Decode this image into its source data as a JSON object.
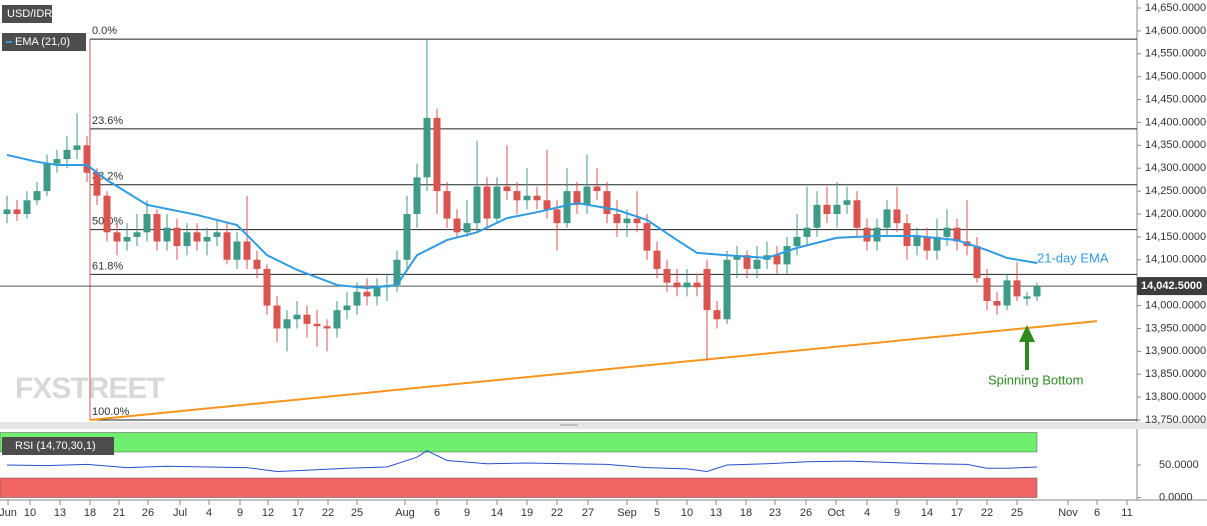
{
  "chart_data": [
    {
      "type": "candlestick",
      "symbol": "USD/IDR",
      "watermark": "FXSTREET",
      "up_color": "#3d9a87",
      "down_color": "#d9534f",
      "xlim": [
        -0.7,
        113
      ],
      "ylim": [
        13750,
        14650
      ],
      "yticks": [
        {
          "value": 13750,
          "label": "13,750.0000"
        },
        {
          "value": 13800,
          "label": "13,800.0000"
        },
        {
          "value": 13850,
          "label": "13,850.0000"
        },
        {
          "value": 13900,
          "label": "13,900.0000"
        },
        {
          "value": 13950,
          "label": "13,950.0000"
        },
        {
          "value": 14000,
          "label": "14,000.0000"
        },
        {
          "value": 14050,
          "label": "14,050.0000"
        },
        {
          "value": 14100,
          "label": "14,100.0000"
        },
        {
          "value": 14150,
          "label": "14,150.0000"
        },
        {
          "value": 14200,
          "label": "14,200.0000"
        },
        {
          "value": 14250,
          "label": "14,250.0000"
        },
        {
          "value": 14300,
          "label": "14,300.0000"
        },
        {
          "value": 14350,
          "label": "14,350.0000"
        },
        {
          "value": 14400,
          "label": "14,400.0000"
        },
        {
          "value": 14450,
          "label": "14,450.0000"
        },
        {
          "value": 14500,
          "label": "14,500.0000"
        },
        {
          "value": 14550,
          "label": "14,550.0000"
        },
        {
          "value": 14600,
          "label": "14,600.0000"
        },
        {
          "value": 14650,
          "label": "14,650.0000"
        }
      ],
      "x": [
        0,
        1,
        2,
        3,
        4,
        5,
        6,
        7,
        8,
        9,
        10,
        11,
        12,
        13,
        14,
        15,
        16,
        17,
        18,
        19,
        20,
        21,
        22,
        23,
        24,
        25,
        26,
        27,
        28,
        29,
        30,
        31,
        32,
        33,
        34,
        35,
        36,
        37,
        38,
        39,
        40,
        41,
        42,
        43,
        44,
        45,
        46,
        47,
        48,
        49,
        50,
        51,
        52,
        53,
        54,
        55,
        56,
        57,
        58,
        59,
        60,
        61,
        62,
        63,
        64,
        65,
        66,
        67,
        68,
        69,
        70,
        71,
        72,
        73,
        74,
        75,
        76,
        77,
        78,
        79,
        80,
        81,
        82,
        83,
        84,
        85,
        86,
        87,
        88,
        89,
        90,
        91,
        92,
        93,
        94,
        95,
        96,
        97,
        98,
        99,
        100,
        101,
        102,
        103
      ],
      "open": [
        14200,
        14210,
        14200,
        14230,
        14250,
        14310,
        14320,
        14340,
        14350,
        14290,
        14240,
        14160,
        14140,
        14150,
        14160,
        14200,
        14140,
        14170,
        14130,
        14160,
        14140,
        14150,
        14160,
        14100,
        14140,
        14100,
        14080,
        14000,
        13950,
        13970,
        13980,
        13960,
        13955,
        13950,
        13990,
        14000,
        14030,
        14020,
        14040,
        14045,
        14100,
        14200,
        14280,
        14410,
        14250,
        14190,
        14160,
        14180,
        14260,
        14190,
        14260,
        14250,
        14230,
        14240,
        14230,
        14210,
        14180,
        14250,
        14220,
        14260,
        14250,
        14200,
        14180,
        14190,
        14180,
        14120,
        14080,
        14050,
        14040,
        14050,
        14080,
        13990,
        13970,
        14100,
        14110,
        14080,
        14100,
        14110,
        14090,
        14130,
        14150,
        14170,
        14220,
        14200,
        14220,
        14230,
        14170,
        14140,
        14170,
        14210,
        14180,
        14130,
        14150,
        14120,
        14150,
        14170,
        14140,
        14130,
        14060,
        14010,
        14000,
        14055,
        14015,
        14020
      ],
      "high": [
        14240,
        14230,
        14250,
        14270,
        14330,
        14340,
        14370,
        14420,
        14370,
        14300,
        14250,
        14180,
        14180,
        14200,
        14230,
        14210,
        14200,
        14190,
        14180,
        14180,
        14170,
        14190,
        14180,
        14160,
        14240,
        14120,
        14090,
        14020,
        13990,
        14010,
        14000,
        13990,
        13970,
        14010,
        14030,
        14050,
        14060,
        14060,
        14070,
        14120,
        14240,
        14310,
        14580,
        14430,
        14270,
        14210,
        14230,
        14360,
        14280,
        14280,
        14350,
        14270,
        14300,
        14260,
        14340,
        14230,
        14300,
        14270,
        14330,
        14300,
        14270,
        14230,
        14210,
        14250,
        14200,
        14140,
        14100,
        14080,
        14080,
        14070,
        14100,
        14010,
        14120,
        14130,
        14120,
        14130,
        14140,
        14130,
        14150,
        14200,
        14260,
        14250,
        14260,
        14270,
        14260,
        14250,
        14190,
        14190,
        14230,
        14260,
        14200,
        14170,
        14170,
        14190,
        14210,
        14190,
        14230,
        14150,
        14080,
        14030,
        14070,
        14095,
        14030,
        14050
      ],
      "low": [
        14180,
        14185,
        14190,
        14220,
        14240,
        14290,
        14300,
        14320,
        14270,
        14220,
        14140,
        14110,
        14120,
        14130,
        14140,
        14120,
        14120,
        14100,
        14110,
        14120,
        14110,
        14130,
        14090,
        14080,
        14080,
        14060,
        13980,
        13920,
        13900,
        13950,
        13930,
        13910,
        13900,
        13930,
        13970,
        13980,
        14000,
        14000,
        14010,
        14030,
        14080,
        14170,
        14250,
        14200,
        14170,
        14150,
        14150,
        14160,
        14170,
        14180,
        14230,
        14200,
        14210,
        14210,
        14190,
        14120,
        14170,
        14200,
        14200,
        14230,
        14180,
        14150,
        14150,
        14160,
        14100,
        14060,
        14030,
        14020,
        14020,
        14020,
        13880,
        13950,
        13960,
        14060,
        14060,
        14060,
        14080,
        14070,
        14070,
        14110,
        14130,
        14150,
        14180,
        14170,
        14200,
        14150,
        14120,
        14120,
        14150,
        14160,
        14100,
        14110,
        14100,
        14100,
        14130,
        14120,
        14110,
        14050,
        13990,
        13980,
        13990,
        14010,
        14000,
        14010
      ],
      "close": [
        14210,
        14200,
        14230,
        14250,
        14310,
        14320,
        14340,
        14350,
        14290,
        14240,
        14160,
        14140,
        14150,
        14160,
        14200,
        14140,
        14170,
        14130,
        14160,
        14140,
        14150,
        14160,
        14100,
        14140,
        14100,
        14080,
        14000,
        13950,
        13970,
        13980,
        13960,
        13955,
        13950,
        13990,
        14000,
        14030,
        14020,
        14040,
        14045,
        14100,
        14200,
        14280,
        14410,
        14250,
        14190,
        14160,
        14180,
        14260,
        14190,
        14260,
        14250,
        14230,
        14240,
        14230,
        14210,
        14180,
        14250,
        14220,
        14260,
        14250,
        14200,
        14180,
        14190,
        14180,
        14120,
        14080,
        14050,
        14040,
        14050,
        14040,
        13990,
        13970,
        14100,
        14110,
        14080,
        14100,
        14110,
        14090,
        14130,
        14150,
        14170,
        14220,
        14200,
        14220,
        14230,
        14170,
        14140,
        14170,
        14210,
        14180,
        14130,
        14150,
        14120,
        14150,
        14170,
        14140,
        14130,
        14060,
        14010,
        14000,
        14055,
        14020,
        14020,
        14042.5
      ],
      "ema": {
        "name": "EMA (21,0)",
        "label": "21-day EMA",
        "color": "#2f9be0",
        "x": [
          0,
          3,
          5,
          8,
          10,
          14,
          19,
          23,
          26,
          29,
          33,
          36,
          39,
          41,
          44,
          47,
          50,
          53,
          57,
          61,
          64,
          67,
          69,
          72,
          76,
          79,
          83,
          87,
          91,
          95,
          98,
          100,
          103
        ],
        "values": [
          14329,
          14314,
          14307,
          14307,
          14274,
          14220,
          14198,
          14176,
          14110,
          14078,
          14045,
          14038,
          14045,
          14110,
          14143,
          14160,
          14191,
          14204,
          14224,
          14209,
          14187,
          14143,
          14115,
          14110,
          14104,
          14126,
          14148,
          14152,
          14152,
          14143,
          14121,
          14104,
          14093
        ]
      },
      "fib_x": 8.3,
      "fib": [
        {
          "value": 14582,
          "label": "0.0%"
        },
        {
          "value": 14386,
          "label": "23.6%"
        },
        {
          "value": 14264,
          "label": "38.2%"
        },
        {
          "value": 14166,
          "label": "50.0%"
        },
        {
          "value": 14068,
          "label": "61.8%"
        },
        {
          "value": 13750,
          "label": "100.0%"
        }
      ],
      "trendline": {
        "color": "#f7941d",
        "x": [
          8.3,
          109
        ],
        "values": [
          13750,
          13966
        ]
      },
      "last_price": {
        "value": 14042.5,
        "label": "14,042.5000"
      },
      "annotation": "Spinning Bottom"
    },
    {
      "type": "line",
      "title": "RSI (14,70,30,1)",
      "color": "#2a4fd0",
      "xlim": [
        -0.7,
        113
      ],
      "ylim": [
        0,
        100
      ],
      "yticks": [
        {
          "value": 0,
          "label": "0.0000"
        },
        {
          "value": 50,
          "label": "50.0000"
        }
      ],
      "bands": [
        {
          "from": 70,
          "to": 100,
          "color": "#6fee6f"
        },
        {
          "from": 0,
          "to": 30,
          "color": "#f06464"
        }
      ],
      "x": [
        0,
        4,
        8,
        12,
        16,
        20,
        24,
        27,
        30,
        34,
        38,
        41,
        42,
        44,
        48,
        52,
        56,
        60,
        64,
        68,
        70,
        72,
        76,
        80,
        84,
        88,
        92,
        96,
        98,
        100,
        103
      ],
      "values": [
        50,
        49,
        51,
        46,
        48,
        47,
        46,
        40,
        42,
        45,
        47,
        62,
        72,
        57,
        52,
        53,
        52,
        51,
        46,
        44,
        40,
        50,
        52,
        55,
        56,
        54,
        52,
        51,
        45,
        45,
        47
      ],
      "xticks": [
        {
          "value": 0.1,
          "label": "Jun"
        },
        {
          "value": 2.3,
          "label": "10"
        },
        {
          "value": 5.3,
          "label": "13"
        },
        {
          "value": 8.3,
          "label": "18"
        },
        {
          "value": 11.2,
          "label": "21"
        },
        {
          "value": 14.1,
          "label": "26"
        },
        {
          "value": 17.3,
          "label": "Jul"
        },
        {
          "value": 20.2,
          "label": "4"
        },
        {
          "value": 23.3,
          "label": "9"
        },
        {
          "value": 26.1,
          "label": "12"
        },
        {
          "value": 29.1,
          "label": "17"
        },
        {
          "value": 32.1,
          "label": "22"
        },
        {
          "value": 35,
          "label": "25"
        },
        {
          "value": 39.8,
          "label": "Aug"
        },
        {
          "value": 43,
          "label": "6"
        },
        {
          "value": 46,
          "label": "9"
        },
        {
          "value": 49,
          "label": "14"
        },
        {
          "value": 52,
          "label": "19"
        },
        {
          "value": 55,
          "label": "22"
        },
        {
          "value": 58.1,
          "label": "27"
        },
        {
          "value": 62,
          "label": "Sep"
        },
        {
          "value": 65,
          "label": "5"
        },
        {
          "value": 68,
          "label": "10"
        },
        {
          "value": 70.9,
          "label": "13"
        },
        {
          "value": 73.9,
          "label": "18"
        },
        {
          "value": 76.8,
          "label": "23"
        },
        {
          "value": 79.9,
          "label": "26"
        },
        {
          "value": 82.9,
          "label": "Oct"
        },
        {
          "value": 86,
          "label": "4"
        },
        {
          "value": 89,
          "label": "9"
        },
        {
          "value": 92,
          "label": "14"
        },
        {
          "value": 95,
          "label": "17"
        },
        {
          "value": 98,
          "label": "22"
        },
        {
          "value": 101,
          "label": "25"
        },
        {
          "value": 106.1,
          "label": "Nov"
        },
        {
          "value": 109,
          "label": "6"
        },
        {
          "value": 112,
          "label": "11"
        }
      ]
    }
  ]
}
